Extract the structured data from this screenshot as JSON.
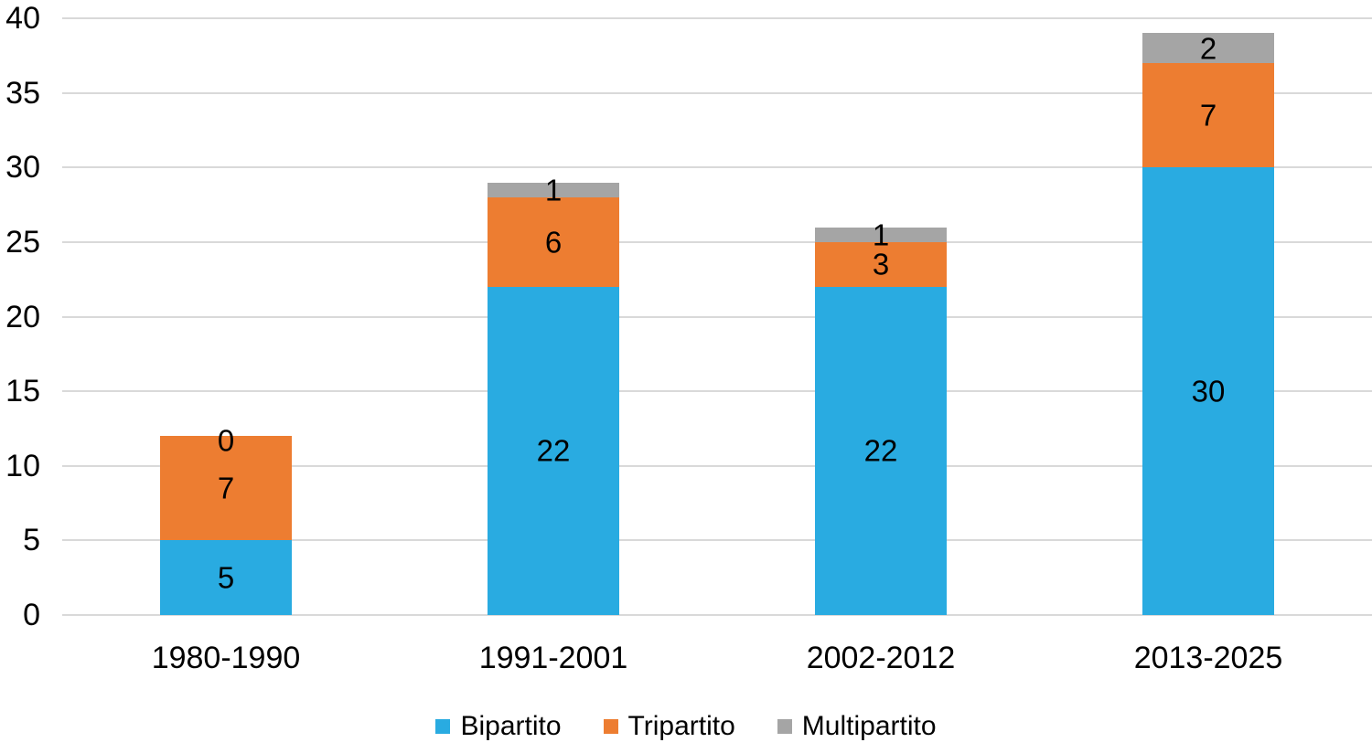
{
  "chart_data": {
    "type": "bar",
    "stacked": true,
    "title": "",
    "xlabel": "",
    "ylabel": "",
    "categories": [
      "1980-1990",
      "1991-2001",
      "2002-2012",
      "2013-2025"
    ],
    "series": [
      {
        "name": "Bipartito",
        "color": "#29ABE1",
        "values": [
          5,
          22,
          22,
          30
        ]
      },
      {
        "name": "Tripartito",
        "color": "#ED7D31",
        "values": [
          7,
          6,
          3,
          7
        ]
      },
      {
        "name": "Multipartito",
        "color": "#A5A5A5",
        "values": [
          0,
          1,
          1,
          2
        ]
      }
    ],
    "totals": [
      12,
      29,
      26,
      39
    ],
    "data_labels": true,
    "ylim": [
      0,
      40
    ],
    "yticks": [
      0,
      5,
      10,
      15,
      20,
      25,
      30,
      35,
      40
    ],
    "grid": true,
    "legend_position": "bottom"
  },
  "colors": {
    "gridline": "#D9D9D9",
    "axis_line": "#D9D9D9",
    "label_text": "#000000",
    "background": "#FFFFFF"
  }
}
